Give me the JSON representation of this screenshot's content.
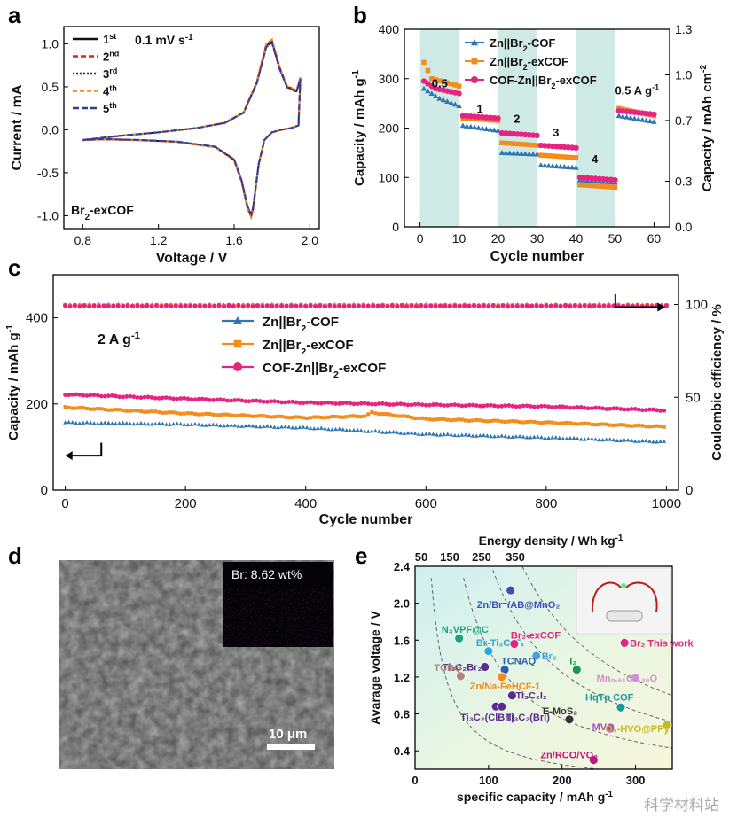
{
  "panel_letters": {
    "a": "a",
    "b": "b",
    "c": "c",
    "d": "d",
    "e": "e"
  },
  "chart_data": [
    {
      "panel": "a",
      "type": "line",
      "xlabel": "Voltage / V",
      "ylabel": "Current / mA",
      "xlim": [
        0.7,
        2.05
      ],
      "ylim": [
        -1.15,
        1.2
      ],
      "xticks": [
        "0.8",
        "1.2",
        "1.6",
        "2.0"
      ],
      "yticks": [
        "-1.0",
        "-0.5",
        "0.0",
        "0.5",
        "1.0"
      ],
      "annotation": "0.1 mV s",
      "annotation_sup": "-1",
      "sample_label": "Br",
      "sample_sub": "2",
      "sample_suffix": "-exCOF",
      "legend_position": "top-left",
      "series": [
        {
          "name": "1",
          "sup": "st",
          "color": "#111111",
          "dash": ""
        },
        {
          "name": "2",
          "sup": "nd",
          "color": "#e0201b",
          "dash": "6,3"
        },
        {
          "name": "3",
          "sup": "rd",
          "color": "#333333",
          "dash": "2,2"
        },
        {
          "name": "4",
          "sup": "th",
          "color": "#f28c1c",
          "dash": "5,3"
        },
        {
          "name": "5",
          "sup": "th",
          "color": "#2b3fa8",
          "dash": "7,3"
        }
      ],
      "cv_upper": [
        [
          0.8,
          -0.12
        ],
        [
          1.0,
          -0.07
        ],
        [
          1.2,
          -0.03
        ],
        [
          1.4,
          0.02
        ],
        [
          1.55,
          0.08
        ],
        [
          1.65,
          0.2
        ],
        [
          1.72,
          0.55
        ],
        [
          1.77,
          0.98
        ],
        [
          1.8,
          1.03
        ],
        [
          1.84,
          0.72
        ],
        [
          1.88,
          0.5
        ],
        [
          1.93,
          0.45
        ],
        [
          1.95,
          0.6
        ]
      ],
      "cv_lower": [
        [
          1.95,
          0.6
        ],
        [
          1.94,
          0.05
        ],
        [
          1.9,
          0.02
        ],
        [
          1.85,
          0.0
        ],
        [
          1.8,
          -0.03
        ],
        [
          1.76,
          -0.12
        ],
        [
          1.73,
          -0.4
        ],
        [
          1.7,
          -0.92
        ],
        [
          1.69,
          -1.0
        ],
        [
          1.67,
          -0.9
        ],
        [
          1.64,
          -0.6
        ],
        [
          1.6,
          -0.35
        ],
        [
          1.5,
          -0.2
        ],
        [
          1.3,
          -0.14
        ],
        [
          1.1,
          -0.12
        ],
        [
          0.9,
          -0.11
        ],
        [
          0.8,
          -0.12
        ]
      ]
    },
    {
      "panel": "b",
      "type": "scatter",
      "xlabel": "Cycle number",
      "ylabel": "Capacity / mAh g",
      "ylabel_sup": "-1",
      "y2label": "Capacity / mAh cm",
      "y2label_sup": "-2",
      "xlim": [
        -4,
        64
      ],
      "ylim": [
        0,
        400
      ],
      "y2lim": [
        0,
        1.3
      ],
      "xticks": [
        "0",
        "10",
        "20",
        "30",
        "40",
        "50",
        "60"
      ],
      "yticks": [
        "0",
        "100",
        "200",
        "300",
        "400"
      ],
      "y2ticks": [
        "0.0",
        "0.3",
        "0.7",
        "1.0",
        "1.3"
      ],
      "rate_labels": [
        "0.5",
        "1",
        "2",
        "3",
        "4",
        "0.5 A g"
      ],
      "rate_label_sup": "-1",
      "shaded_ranges": [
        [
          0,
          10
        ],
        [
          20,
          30
        ],
        [
          40,
          50
        ]
      ],
      "legend_position": "top-right",
      "series": [
        {
          "name": "Zn||Br",
          "sub": "2",
          "suffix": "-COF",
          "color": "#2f77b4",
          "marker": "triangle",
          "levels": [
            [
              1,
              280
            ],
            [
              5,
              260
            ],
            [
              10,
              245
            ],
            [
              11,
              205
            ],
            [
              20,
              195
            ],
            [
              21,
              150
            ],
            [
              30,
              147
            ],
            [
              31,
              125
            ],
            [
              40,
              120
            ],
            [
              41,
              95
            ],
            [
              50,
              90
            ],
            [
              51,
              225
            ],
            [
              60,
              213
            ]
          ]
        },
        {
          "name": "Zn||Br",
          "sub": "2",
          "suffix": "-exCOF",
          "color": "#f28c1c",
          "marker": "square",
          "levels": [
            [
              1,
              333
            ],
            [
              3,
              300
            ],
            [
              10,
              285
            ],
            [
              11,
              220
            ],
            [
              20,
              215
            ],
            [
              21,
              170
            ],
            [
              30,
              165
            ],
            [
              31,
              145
            ],
            [
              40,
              140
            ],
            [
              41,
              85
            ],
            [
              50,
              80
            ],
            [
              51,
              240
            ],
            [
              60,
              225
            ]
          ]
        },
        {
          "name": "COF-Zn||Br",
          "sub": "2",
          "suffix": "-exCOF",
          "color": "#e6237f",
          "marker": "circle",
          "levels": [
            [
              1,
              295
            ],
            [
              4,
              280
            ],
            [
              10,
              270
            ],
            [
              11,
              225
            ],
            [
              20,
              220
            ],
            [
              21,
              190
            ],
            [
              30,
              185
            ],
            [
              31,
              165
            ],
            [
              40,
              160
            ],
            [
              41,
              100
            ],
            [
              50,
              95
            ],
            [
              51,
              235
            ],
            [
              60,
              228
            ]
          ]
        }
      ]
    },
    {
      "panel": "c",
      "type": "scatter",
      "xlabel": "Cycle number",
      "ylabel": "Capacity / mAh g",
      "ylabel_sup": "-1",
      "y2label": "Coulombic efficiency / %",
      "xlim": [
        -20,
        1020
      ],
      "ylim": [
        0,
        500
      ],
      "y2lim": [
        0,
        116
      ],
      "xticks": [
        "0",
        "200",
        "400",
        "600",
        "800",
        "1000"
      ],
      "yticks": [
        "0",
        "200",
        "400"
      ],
      "y2ticks": [
        "0",
        "50",
        "100"
      ],
      "annotation": "2 A g",
      "annotation_sup": "-1",
      "legend_position": "center-left",
      "series": [
        {
          "name": "Zn||Br",
          "sub": "2",
          "suffix": "-COF",
          "color": "#2f77b4",
          "marker": "triangle",
          "capacity": [
            [
              0,
              157
            ],
            [
              200,
              153
            ],
            [
              400,
              145
            ],
            [
              600,
              130
            ],
            [
              800,
              122
            ],
            [
              1000,
              112
            ]
          ],
          "efficiency": 99.8
        },
        {
          "name": "Zn||Br",
          "sub": "2",
          "suffix": "-exCOF",
          "color": "#f28c1c",
          "marker": "square",
          "capacity": [
            [
              0,
              192
            ],
            [
              200,
              178
            ],
            [
              400,
              168
            ],
            [
              500,
              172
            ],
            [
              510,
              180
            ],
            [
              600,
              165
            ],
            [
              800,
              157
            ],
            [
              1000,
              147
            ]
          ],
          "efficiency": 99.5
        },
        {
          "name": "COF-Zn||Br",
          "sub": "2",
          "suffix": "-exCOF",
          "color": "#e6237f",
          "marker": "circle",
          "capacity": [
            [
              0,
              222
            ],
            [
              200,
              212
            ],
            [
              400,
              203
            ],
            [
              600,
              198
            ],
            [
              800,
              194
            ],
            [
              1000,
              185
            ]
          ],
          "efficiency": 99.2
        }
      ]
    },
    {
      "panel": "e",
      "type": "scatter",
      "xlabel": "specific capacity / mAh g",
      "xlabel_sup": "-1",
      "ylabel": "Avarage voltage / V",
      "x2label": "Energy density / Wh kg",
      "x2label_sup": "-1",
      "xlim": [
        0,
        350
      ],
      "ylim": [
        0.2,
        2.4
      ],
      "xticks": [
        "0",
        "100",
        "200",
        "300"
      ],
      "yticks": [
        "0.4",
        "0.8",
        "1.2",
        "1.6",
        "2.0",
        "2.4"
      ],
      "energy_contours": [
        "50",
        "150",
        "250",
        "350"
      ],
      "points": [
        {
          "label": "Zn/Br⁻/AB@MnO₂",
          "x": 130,
          "y": 2.14,
          "color": "#3a4fb0"
        },
        {
          "label": "N₃VPF@C",
          "x": 60,
          "y": 1.62,
          "color": "#1aa37a"
        },
        {
          "label": "Br-Ti₃C₂Tₓ",
          "x": 100,
          "y": 1.48,
          "color": "#2ba7d8"
        },
        {
          "label": "Br₂-exCOF",
          "x": 135,
          "y": 1.56,
          "color": "#e6237f"
        },
        {
          "label": "Br₂",
          "x": 165,
          "y": 1.43,
          "color": "#4aa0e0"
        },
        {
          "label": "Ti₃C₂Br₂",
          "x": 95,
          "y": 1.31,
          "color": "#5a2d8a"
        },
        {
          "label": "TCNAQ",
          "x": 122,
          "y": 1.28,
          "color": "#2d5fa8"
        },
        {
          "label": "I₂",
          "x": 220,
          "y": 1.28,
          "color": "#1a9a4a"
        },
        {
          "label": "Br₂ This work",
          "x": 285,
          "y": 1.57,
          "color": "#e6237f"
        },
        {
          "label": "TCBQ",
          "x": 62,
          "y": 1.21,
          "color": "#b08a78"
        },
        {
          "label": "Zn/Na-FeHCF-1",
          "x": 118,
          "y": 1.2,
          "color": "#f28c1c"
        },
        {
          "label": "Mn₀.₆₁O₀.₃₉O",
          "x": 300,
          "y": 1.19,
          "color": "#d48fd4"
        },
        {
          "label": "Ti₃C₂I₂",
          "x": 132,
          "y": 1.0,
          "color": "#5a2d8a"
        },
        {
          "label": "HqTp COF",
          "x": 280,
          "y": 0.87,
          "color": "#1a9a9a"
        },
        {
          "label": "Ti₃C₂(ClBrI)",
          "x": 110,
          "y": 0.88,
          "color": "#5a2d8a"
        },
        {
          "label": "Ti₃C₂(BrI)",
          "x": 118,
          "y": 0.88,
          "color": "#5a2d8a"
        },
        {
          "label": "E-MoS₂",
          "x": 210,
          "y": 0.74,
          "color": "#333333"
        },
        {
          "label": "MVO",
          "x": 265,
          "y": 0.64,
          "color": "#b04ac0"
        },
        {
          "label": "Zn/RCO/VO₂",
          "x": 243,
          "y": 0.3,
          "color": "#c0187a"
        },
        {
          "label": "O₀-HVO@PPy",
          "x": 343,
          "y": 0.68,
          "color": "#c8b820"
        }
      ]
    }
  ],
  "panel_d": {
    "image": "SEM micrograph",
    "inset_label": "Br: 8.62 wt%",
    "scale_bar": "10 μm"
  },
  "watermark": "科学材料站"
}
